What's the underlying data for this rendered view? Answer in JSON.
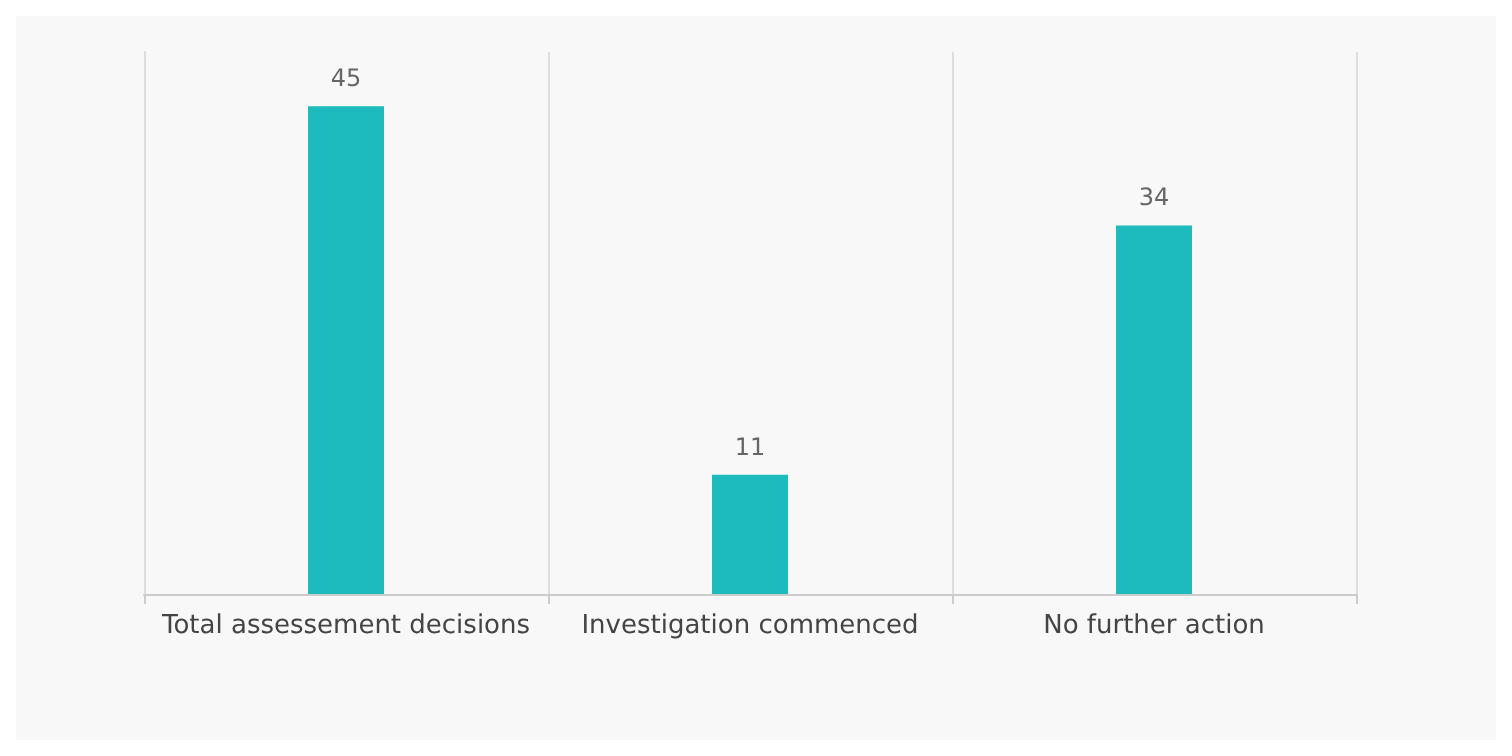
{
  "chart_data": {
    "type": "bar",
    "categories": [
      "Total assessement decisions",
      "Investigation commenced",
      "No further action"
    ],
    "values": [
      45,
      11,
      34
    ],
    "color": "#1dbbbe",
    "data_labels": true,
    "grid": "x"
  }
}
